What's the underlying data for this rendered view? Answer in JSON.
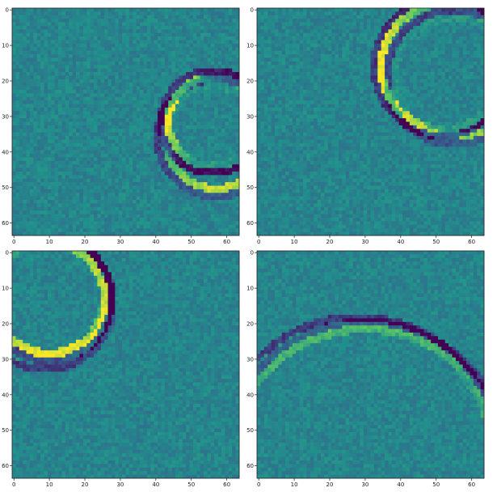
{
  "figure": {
    "grid": "2x2",
    "colormap": "viridis",
    "background_value": 0.45,
    "colors": {
      "axis": "#222222",
      "figure_bg": "#ffffff",
      "viridis": [
        "#440154",
        "#3b528b",
        "#21918c",
        "#5ec962",
        "#fde725"
      ]
    }
  },
  "chart_data": [
    {
      "type": "heatmap",
      "title": "",
      "xlabel": "",
      "ylabel": "",
      "size": [
        64,
        64
      ],
      "xlim": [
        0,
        63
      ],
      "ylim": [
        63,
        0
      ],
      "xticks": [
        "0",
        "10",
        "20",
        "30",
        "40",
        "50",
        "60"
      ],
      "yticks": [
        "0",
        "10",
        "20",
        "30",
        "40",
        "50",
        "60"
      ],
      "grid": false,
      "noise_seed": 11,
      "rings": [
        {
          "cx": 56,
          "cy": 31.5,
          "r": 12.5,
          "bright_dir": [
            -0.7,
            -0.3
          ],
          "bright_strength": 0.85,
          "dark_strength": 0.85
        },
        {
          "cx": 57,
          "cy": 36,
          "r": 14.5,
          "bright_dir": [
            0.1,
            1.0
          ],
          "bright_strength": 0.75,
          "dark_strength": 0.55
        }
      ]
    },
    {
      "type": "heatmap",
      "title": "",
      "xlabel": "",
      "ylabel": "",
      "size": [
        64,
        64
      ],
      "xlim": [
        0,
        63
      ],
      "ylim": [
        63,
        0
      ],
      "xticks": [
        "0",
        "10",
        "20",
        "30",
        "40",
        "50",
        "60"
      ],
      "yticks": [
        "0",
        "10",
        "20",
        "30",
        "40",
        "50",
        "60"
      ],
      "grid": false,
      "noise_seed": 23,
      "rings": [
        {
          "cx": 52,
          "cy": 16,
          "r": 17.5,
          "bright_dir": [
            -1.0,
            0.0
          ],
          "bright_strength": 0.9,
          "dark_strength": 0.9
        },
        {
          "cx": 55,
          "cy": 19,
          "r": 17.0,
          "bright_dir": [
            0.5,
            1.0
          ],
          "bright_strength": 0.6,
          "dark_strength": 0.5
        }
      ]
    },
    {
      "type": "heatmap",
      "title": "",
      "xlabel": "",
      "ylabel": "",
      "size": [
        64,
        64
      ],
      "xlim": [
        0,
        63
      ],
      "ylim": [
        63,
        0
      ],
      "xticks": [
        "0",
        "10",
        "20",
        "30",
        "40",
        "50",
        "60"
      ],
      "yticks": [
        "0",
        "10",
        "20",
        "30",
        "40",
        "50",
        "60"
      ],
      "grid": false,
      "noise_seed": 37,
      "rings": [
        {
          "cx": 10,
          "cy": 13,
          "r": 15.5,
          "bright_dir": [
            0.0,
            1.0
          ],
          "bright_strength": 0.9,
          "dark_strength": 0.85
        },
        {
          "cx": 9,
          "cy": 14,
          "r": 17.0,
          "bright_dir": [
            1.0,
            -0.2
          ],
          "bright_strength": 0.6,
          "dark_strength": 0.55
        }
      ]
    },
    {
      "type": "heatmap",
      "title": "",
      "xlabel": "",
      "ylabel": "",
      "size": [
        64,
        64
      ],
      "xlim": [
        0,
        63
      ],
      "ylim": [
        63,
        0
      ],
      "xticks": [
        "0",
        "10",
        "20",
        "30",
        "40",
        "50",
        "60"
      ],
      "yticks": [
        "0",
        "10",
        "20",
        "30",
        "40",
        "50",
        "60"
      ],
      "grid": false,
      "noise_seed": 53,
      "rings": [
        {
          "cx": 28,
          "cy": 58,
          "r": 38,
          "bright_dir": [
            0.6,
            0.8
          ],
          "bright_strength": 0.65,
          "dark_strength": 0.55
        },
        {
          "cx": 30,
          "cy": 60,
          "r": 38.5,
          "bright_dir": [
            -0.3,
            -0.9
          ],
          "bright_strength": 0.35,
          "dark_strength": 0.6
        }
      ]
    }
  ]
}
